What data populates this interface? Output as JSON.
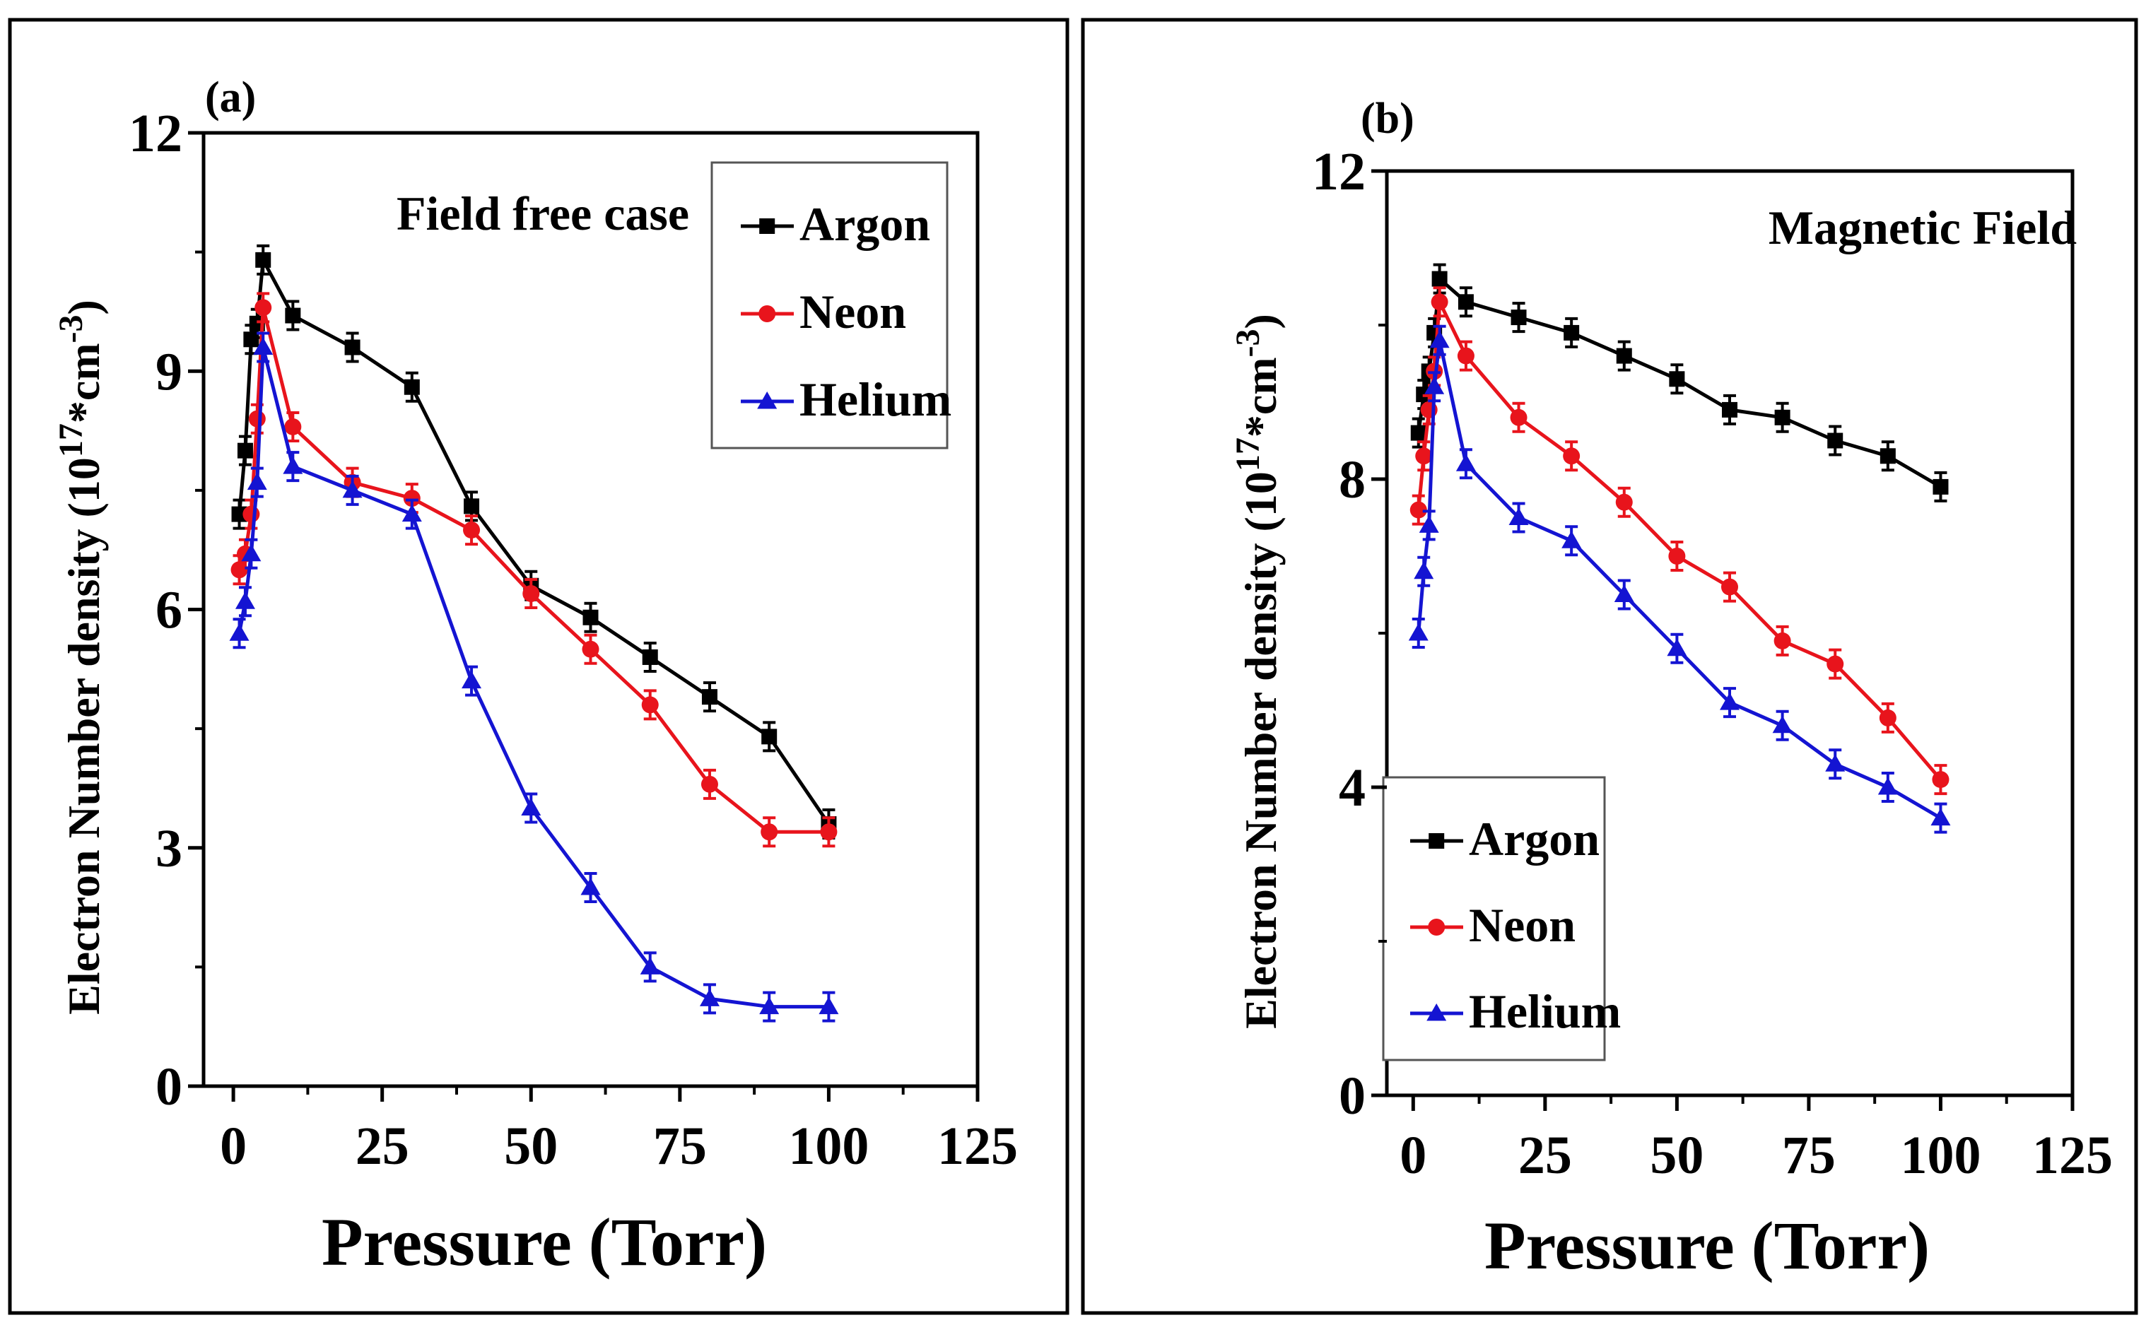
{
  "colors": {
    "argon": "#000000",
    "neon": "#e8141c",
    "helium": "#1414d2",
    "frame": "#000000",
    "background": "#ffffff"
  },
  "chart_data": [
    {
      "type": "line",
      "panel_label": "(a)",
      "annotation": "Field free case",
      "xlabel": "Pressure (Torr)",
      "ylabel_main": "Electron Number density (10",
      "ylabel_exp1": "17",
      "ylabel_mid": "*cm",
      "ylabel_exp2": "-3",
      "ylabel_close": ")",
      "xlim": [
        -5,
        125
      ],
      "ylim": [
        0,
        12
      ],
      "xticks": [
        0,
        25,
        50,
        75,
        100,
        125
      ],
      "xtick_labels": [
        "0",
        "25",
        "50",
        "75",
        "100",
        "125"
      ],
      "yticks": [
        0,
        3,
        6,
        9,
        12
      ],
      "ytick_labels": [
        "0",
        "3",
        "6",
        "9",
        "12"
      ],
      "legend_position": "top-right",
      "x": [
        1,
        2,
        3,
        4,
        5,
        10,
        20,
        30,
        40,
        50,
        60,
        70,
        80,
        90,
        100
      ],
      "series": [
        {
          "name": "Argon",
          "key": "argon",
          "marker": "square",
          "values": [
            7.2,
            8.0,
            9.4,
            9.6,
            10.4,
            9.7,
            9.3,
            8.8,
            7.3,
            6.3,
            5.9,
            5.4,
            4.9,
            4.4,
            3.3
          ]
        },
        {
          "name": "Neon",
          "key": "neon",
          "marker": "circle",
          "values": [
            6.5,
            6.7,
            7.2,
            8.4,
            9.8,
            8.3,
            7.6,
            7.4,
            7.0,
            6.2,
            5.5,
            4.8,
            3.8,
            3.2,
            3.2
          ]
        },
        {
          "name": "Helium",
          "key": "helium",
          "marker": "triangle",
          "values": [
            5.7,
            6.1,
            6.7,
            7.6,
            9.3,
            7.8,
            7.5,
            7.2,
            5.1,
            3.5,
            2.5,
            1.5,
            1.1,
            1.0,
            1.0
          ]
        }
      ]
    },
    {
      "type": "line",
      "panel_label": "(b)",
      "annotation": "Magnetic Field",
      "xlabel": "Pressure (Torr)",
      "ylabel_main": "Electron Number density (10",
      "ylabel_exp1": "17",
      "ylabel_mid": "*cm",
      "ylabel_exp2": "-3",
      "ylabel_close": ")",
      "xlim": [
        -5,
        125
      ],
      "ylim": [
        0,
        12
      ],
      "xticks": [
        0,
        25,
        50,
        75,
        100,
        125
      ],
      "xtick_labels": [
        "0",
        "25",
        "50",
        "75",
        "100",
        "125"
      ],
      "yticks": [
        0,
        4,
        8,
        12
      ],
      "ytick_labels": [
        "0",
        "4",
        "8",
        "12"
      ],
      "legend_position": "bottom-left",
      "x": [
        1,
        2,
        3,
        4,
        5,
        10,
        20,
        30,
        40,
        50,
        60,
        70,
        80,
        90,
        100
      ],
      "series": [
        {
          "name": "Argon",
          "key": "argon",
          "marker": "square",
          "values": [
            8.6,
            9.1,
            9.4,
            9.9,
            10.6,
            10.3,
            10.1,
            9.9,
            9.6,
            9.3,
            8.9,
            8.8,
            8.5,
            8.3,
            7.9
          ]
        },
        {
          "name": "Neon",
          "key": "neon",
          "marker": "circle",
          "values": [
            7.6,
            8.3,
            8.9,
            9.4,
            10.3,
            9.6,
            8.8,
            8.3,
            7.7,
            7.0,
            6.6,
            5.9,
            5.6,
            4.9,
            4.1
          ]
        },
        {
          "name": "Helium",
          "key": "helium",
          "marker": "triangle",
          "values": [
            6.0,
            6.8,
            7.4,
            9.2,
            9.8,
            8.2,
            7.5,
            7.2,
            6.5,
            5.8,
            5.1,
            4.8,
            4.3,
            4.0,
            3.6
          ]
        }
      ]
    }
  ]
}
